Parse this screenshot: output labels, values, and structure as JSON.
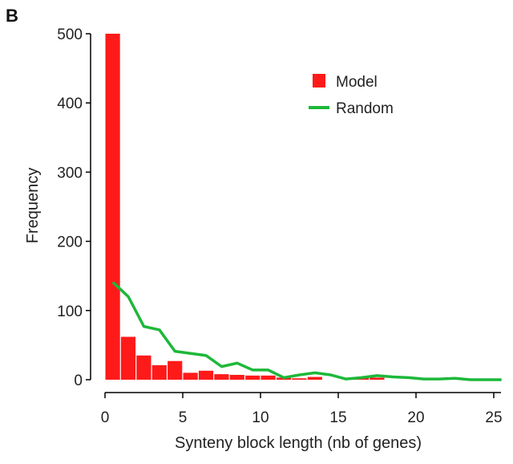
{
  "panel_label": "B",
  "chart_data": {
    "type": "bar",
    "xlabel": "Synteny block length (nb of genes)",
    "ylabel": "Frequency",
    "xlim": [
      0,
      25.5
    ],
    "ylim": [
      0,
      500
    ],
    "xticks": [
      0,
      5,
      10,
      15,
      20,
      25
    ],
    "yticks": [
      0,
      100,
      200,
      300,
      400,
      500
    ],
    "legend_position": "top-right",
    "colors": {
      "model": "#ff1a1a",
      "random": "#1db83a"
    },
    "series": [
      {
        "name": "Model",
        "kind": "bar",
        "x": [
          0.5,
          1.5,
          2.5,
          3.5,
          4.5,
          5.5,
          6.5,
          7.5,
          8.5,
          9.5,
          10.5,
          11.5,
          12.5,
          13.5,
          14.5,
          15.5,
          16.5,
          17.5,
          18.5,
          19.5,
          20.5,
          21.5,
          22.5,
          23.5,
          24.5
        ],
        "values": [
          500,
          62,
          35,
          21,
          27,
          10,
          13,
          8,
          7,
          6,
          6,
          3,
          2,
          4,
          0,
          0,
          3,
          3,
          0,
          0,
          0,
          0,
          0,
          1,
          0
        ]
      },
      {
        "name": "Random",
        "kind": "line",
        "x": [
          0.5,
          1.5,
          2.5,
          3.5,
          4.5,
          5.5,
          6.5,
          7.5,
          8.5,
          9.5,
          10.5,
          11.5,
          12.5,
          13.5,
          14.5,
          15.5,
          16.5,
          17.5,
          18.5,
          19.5,
          20.5,
          21.5,
          22.5,
          23.5,
          24.5,
          25.5
        ],
        "values": [
          141,
          120,
          77,
          72,
          41,
          38,
          35,
          19,
          24,
          14,
          14,
          3,
          7,
          10,
          7,
          1,
          3,
          6,
          4,
          3,
          1,
          1,
          2,
          0,
          0,
          0
        ]
      }
    ]
  }
}
